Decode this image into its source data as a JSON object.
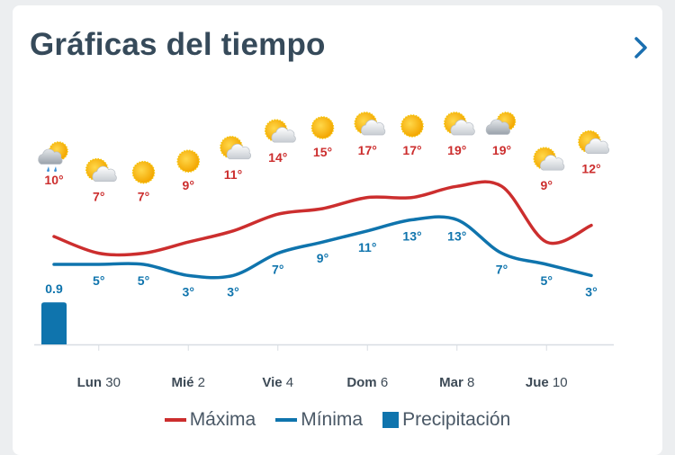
{
  "header": {
    "title": "Gráficas del tiempo",
    "next_icon": "chevron-right-icon"
  },
  "colors": {
    "max": "#cc2e2e",
    "min": "#0f74ad",
    "precip": "#0f74ad",
    "title": "#364a5a",
    "axis": "#d8dde2"
  },
  "chart_data": {
    "type": "line",
    "days": 13,
    "icons": [
      "sun-cloud-rain",
      "partly-cloudy",
      "sunny",
      "sunny",
      "partly-cloudy",
      "partly-cloudy",
      "sunny",
      "partly-cloudy",
      "sunny",
      "partly-cloudy",
      "mostly-cloudy",
      "partly-cloudy",
      "partly-cloudy"
    ],
    "x_ticks": [
      {
        "index": 1,
        "day": "Lun",
        "num": "30"
      },
      {
        "index": 3,
        "day": "Mié",
        "num": "2"
      },
      {
        "index": 5,
        "day": "Vie",
        "num": "4"
      },
      {
        "index": 7,
        "day": "Dom",
        "num": "6"
      },
      {
        "index": 9,
        "day": "Mar",
        "num": "8"
      },
      {
        "index": 11,
        "day": "Jue",
        "num": "10"
      }
    ],
    "series": [
      {
        "name": "Máxima",
        "key": "max",
        "values": [
          10,
          7,
          7,
          9,
          11,
          14,
          15,
          17,
          17,
          19,
          19,
          9,
          12
        ],
        "labels": [
          "10°",
          "7°",
          "7°",
          "9°",
          "11°",
          "14°",
          "15°",
          "17°",
          "17°",
          "19°",
          "19°",
          "9°",
          "12°"
        ]
      },
      {
        "name": "Mínima",
        "key": "min",
        "values": [
          5,
          5,
          5,
          3,
          3,
          7,
          9,
          11,
          13,
          13,
          7,
          5,
          3
        ],
        "labels": [
          null,
          "5°",
          "5°",
          "3°",
          "3°",
          "7°",
          "9°",
          "11°",
          "13°",
          "13°",
          "7°",
          "5°",
          "3°"
        ]
      }
    ],
    "precipitation": {
      "name": "Precipitación",
      "values": [
        0.9,
        0,
        0,
        0,
        0,
        0,
        0,
        0,
        0,
        0,
        0,
        0,
        0
      ],
      "labels": [
        "0.9"
      ]
    },
    "legend": [
      "Máxima",
      "Mínima",
      "Precipitación"
    ]
  }
}
